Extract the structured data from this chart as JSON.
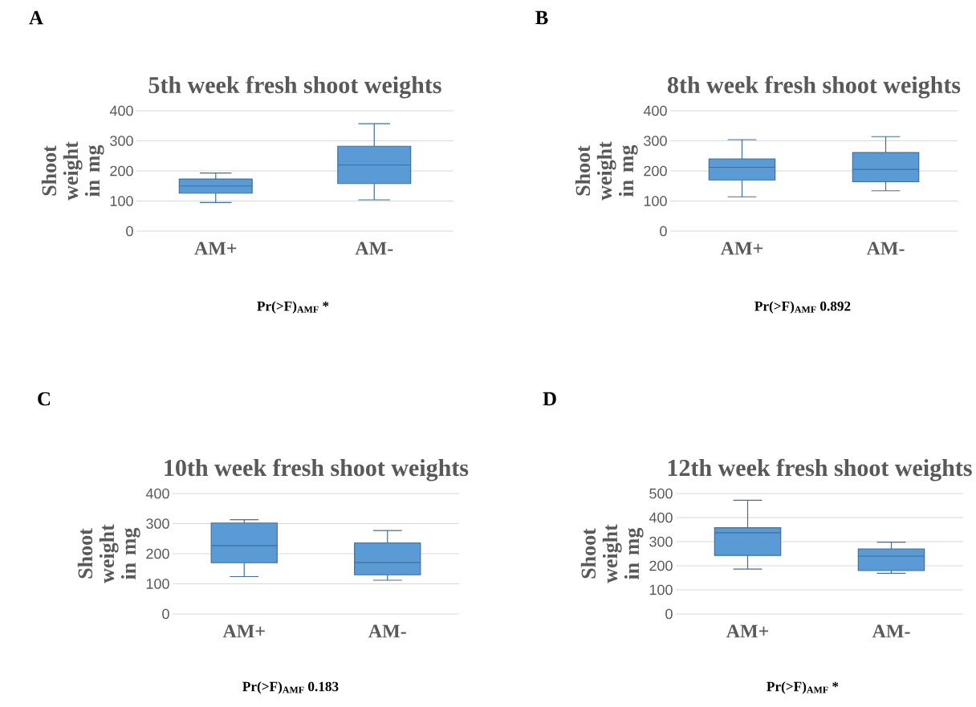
{
  "chart_data": [
    {
      "type": "box",
      "title": "5th week fresh shoot weights",
      "ylabel": "Shoot weight in mg",
      "categories": [
        "AM+",
        "AM-"
      ],
      "color": "#5b9bd5",
      "grid": "y",
      "ylim": [
        0,
        400
      ],
      "yticks": [
        0,
        100,
        200,
        300,
        400
      ],
      "boxes": [
        {
          "low": 95,
          "q1": 126,
          "median": 150,
          "q3": 173,
          "high": 193
        },
        {
          "low": 104,
          "q1": 158,
          "median": 220,
          "q3": 282,
          "high": 357
        }
      ],
      "annotations": [
        "A",
        "Pr(>F)$_{AMF}$ *"
      ]
    },
    {
      "type": "box",
      "title": "8th week fresh shoot weights",
      "ylabel": "Shoot weight in mg",
      "categories": [
        "AM+",
        "AM-"
      ],
      "color": "#5b9bd5",
      "grid": "y",
      "ylim": [
        0,
        400
      ],
      "yticks": [
        0,
        100,
        200,
        300,
        400
      ],
      "boxes": [
        {
          "low": 114,
          "q1": 170,
          "median": 212,
          "q3": 240,
          "high": 304
        },
        {
          "low": 134,
          "q1": 164,
          "median": 205,
          "q3": 261,
          "high": 314
        }
      ],
      "annotations": [
        "B",
        "Pr(>F)$_{AMF}$ 0.892"
      ]
    },
    {
      "type": "box",
      "title": "10th week fresh shoot weights",
      "ylabel": "Shoot weight in mg",
      "categories": [
        "AM+",
        "AM-"
      ],
      "color": "#5b9bd5",
      "grid": "y",
      "ylim": [
        0,
        400
      ],
      "yticks": [
        0,
        100,
        200,
        300,
        400
      ],
      "boxes": [
        {
          "low": 124,
          "q1": 170,
          "median": 227,
          "q3": 302,
          "high": 313
        },
        {
          "low": 112,
          "q1": 130,
          "median": 171,
          "q3": 236,
          "high": 277
        }
      ],
      "annotations": [
        "C",
        "Pr(>F)$_{AMF}$ 0.183"
      ]
    },
    {
      "type": "box",
      "title": "12th week fresh shoot weights",
      "ylabel": "Shoot weight in mg",
      "categories": [
        "AM+",
        "AM-"
      ],
      "color": "#5b9bd5",
      "grid": "y",
      "ylim": [
        0,
        500
      ],
      "yticks": [
        0,
        100,
        200,
        300,
        400,
        500
      ],
      "boxes": [
        {
          "low": 186,
          "q1": 243,
          "median": 337,
          "q3": 358,
          "high": 472
        },
        {
          "low": 169,
          "q1": 180,
          "median": 240,
          "q3": 270,
          "high": 298
        }
      ],
      "annotations": [
        "D",
        "Pr(>F)$_{AMF}$ *"
      ]
    }
  ]
}
